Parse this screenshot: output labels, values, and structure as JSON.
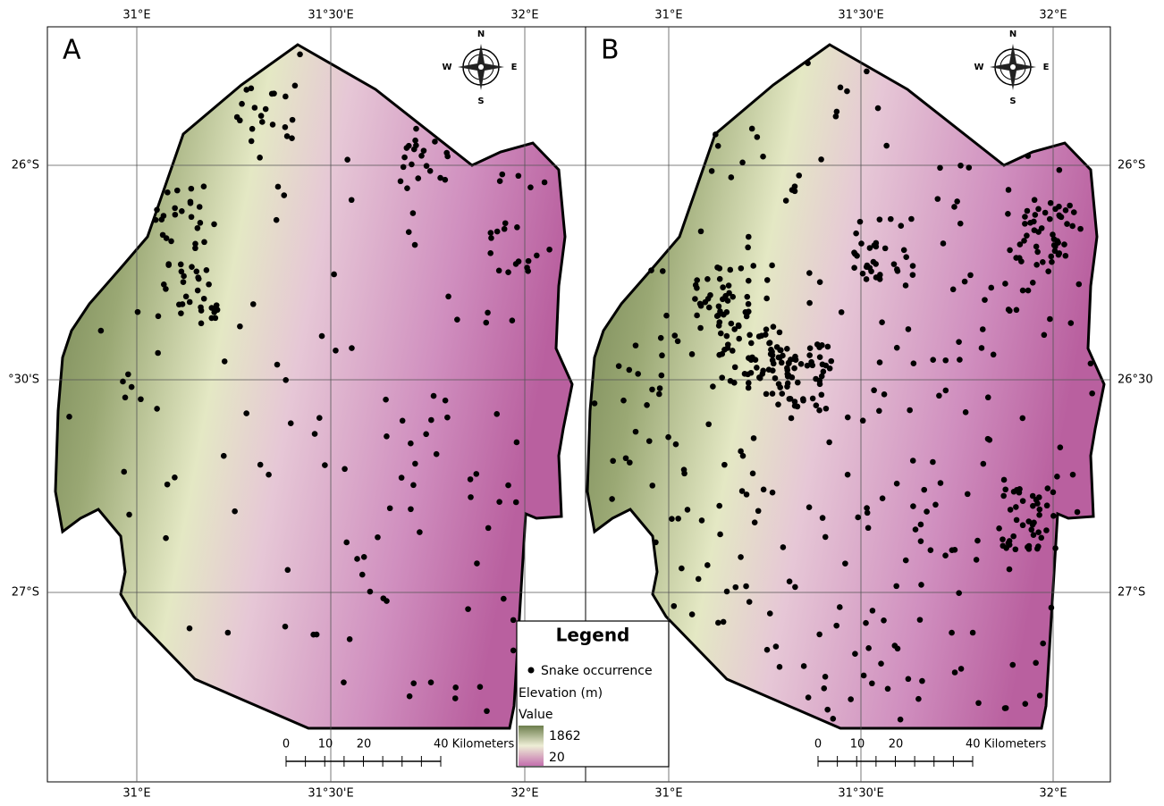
{
  "panels": [
    {
      "label": "A",
      "top_labels": [
        "31°E",
        "31°30'E",
        "32°E"
      ],
      "bottom_labels": [
        "31°E",
        "31°30'E",
        "32°E"
      ],
      "side_labels": [
        "26°S",
        "°30'S",
        "27°S"
      ],
      "compass": {
        "n": "N",
        "e": "E",
        "s": "S",
        "w": "W"
      },
      "scale_bar": [
        "0",
        "10",
        "20",
        "40 Kilometers"
      ]
    },
    {
      "label": "B",
      "top_labels": [
        "31°E",
        "31°30'E",
        "32°E"
      ],
      "bottom_labels": [
        "31°E",
        "31°30'E",
        "32°E"
      ],
      "side_labels": [
        "26°S",
        "26°30",
        "27°S"
      ],
      "compass": {
        "n": "N",
        "e": "E",
        "s": "S",
        "w": "W"
      },
      "scale_bar": [
        "0",
        "10",
        "20",
        "40 Kilometers"
      ]
    }
  ],
  "legend": {
    "title": "Legend",
    "point_label": "Snake occurrence",
    "raster_label": "Elevation (m)",
    "value_label": "Value",
    "high": "1862",
    "low": "20"
  }
}
